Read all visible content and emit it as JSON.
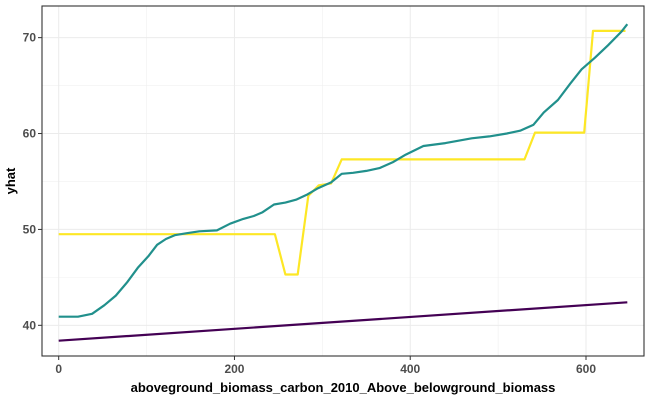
{
  "chart_data": {
    "type": "line",
    "title": "",
    "xlabel": "aboveground_biomass_carbon_2010_Above_belowground_biomass",
    "ylabel": "yhat",
    "xlim": [
      -19,
      666
    ],
    "ylim": [
      36.8,
      73.3
    ],
    "x_ticks": [
      0,
      200,
      400,
      600
    ],
    "y_ticks": [
      40,
      50,
      60,
      70
    ],
    "grid": true,
    "legend": "none",
    "series": [
      {
        "color": "#fde725",
        "x": [
          0,
          246,
          258,
          272,
          284,
          296,
          310,
          322,
          530,
          542,
          598,
          608,
          645
        ],
        "y": [
          49.5,
          49.5,
          45.3,
          45.3,
          53.5,
          54.6,
          54.8,
          57.3,
          57.3,
          60.1,
          60.1,
          70.7,
          70.7
        ]
      },
      {
        "color": "#21908c",
        "x": [
          0,
          22,
          38,
          52,
          65,
          78,
          90,
          102,
          112,
          122,
          132,
          145,
          160,
          180,
          195,
          210,
          222,
          232,
          245,
          258,
          270,
          282,
          295,
          310,
          322,
          335,
          350,
          365,
          380,
          395,
          415,
          440,
          470,
          490,
          510,
          525,
          540,
          552,
          568,
          582,
          595,
          610,
          625,
          640,
          647
        ],
        "y": [
          40.9,
          40.9,
          41.2,
          42.1,
          43.1,
          44.5,
          46.0,
          47.2,
          48.4,
          49.0,
          49.4,
          49.6,
          49.8,
          49.9,
          50.6,
          51.1,
          51.4,
          51.8,
          52.6,
          52.8,
          53.1,
          53.6,
          54.3,
          54.9,
          55.8,
          55.9,
          56.1,
          56.4,
          57.0,
          57.8,
          58.7,
          59.0,
          59.5,
          59.7,
          60.0,
          60.3,
          60.9,
          62.2,
          63.5,
          65.2,
          66.7,
          67.9,
          69.2,
          70.6,
          71.4
        ]
      },
      {
        "color": "#440154",
        "x": [
          0,
          647
        ],
        "y": [
          38.4,
          42.4
        ]
      }
    ]
  }
}
